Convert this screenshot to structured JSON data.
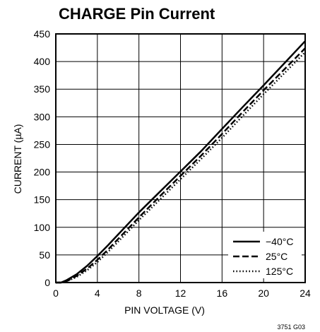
{
  "chart_data": {
    "type": "line",
    "title": "CHARGE Pin Current",
    "xlabel": "PIN VOLTAGE (V)",
    "ylabel": "CURRENT (µA)",
    "xlim": [
      0,
      24
    ],
    "ylim": [
      0,
      450
    ],
    "xticks": [
      0,
      4,
      8,
      12,
      16,
      20,
      24
    ],
    "yticks": [
      0,
      50,
      100,
      150,
      200,
      250,
      300,
      350,
      400,
      450
    ],
    "grid": true,
    "legend_position": "bottom-right",
    "figure_id": "3751 G03",
    "series": [
      {
        "name": "−40°C",
        "style": "solid",
        "x": [
          0,
          0.5,
          1,
          2,
          3,
          4,
          5,
          6,
          8,
          10,
          12,
          14,
          16,
          18,
          20,
          22,
          24
        ],
        "y": [
          0,
          0,
          4,
          15,
          30,
          48,
          67,
          87,
          127,
          164,
          201,
          238,
          278,
          318,
          357,
          397,
          437
        ]
      },
      {
        "name": "25°C",
        "style": "dashed",
        "x": [
          0,
          0.5,
          1,
          2,
          3,
          4,
          5,
          6,
          8,
          10,
          12,
          14,
          16,
          18,
          20,
          22,
          24
        ],
        "y": [
          0,
          0,
          2,
          12,
          25,
          41,
          59,
          79,
          118,
          156,
          193,
          230,
          269,
          309,
          348,
          386,
          424
        ]
      },
      {
        "name": "125°C",
        "style": "dotted",
        "x": [
          0,
          0.5,
          1,
          2,
          3,
          4,
          5,
          6,
          8,
          10,
          12,
          14,
          16,
          18,
          20,
          22,
          24
        ],
        "y": [
          0,
          0,
          2,
          10,
          22,
          37,
          55,
          74,
          113,
          150,
          187,
          224,
          262,
          302,
          341,
          379,
          417
        ]
      }
    ]
  }
}
